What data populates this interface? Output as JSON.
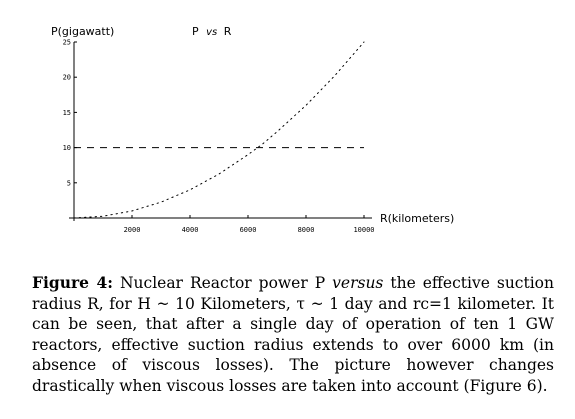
{
  "chart_data": {
    "type": "line",
    "title": "P vs R",
    "title_parts": {
      "lead": "P",
      "mid": "vs",
      "tail": "R"
    },
    "ylabel": "P(gigawatt)",
    "xlabel": "R(kilometers)",
    "xlim": [
      0,
      10000
    ],
    "ylim": [
      0,
      25
    ],
    "x_ticks": [
      "2000",
      "4000",
      "6000",
      "8000",
      "10000"
    ],
    "x_tick_values": [
      2000,
      4000,
      6000,
      8000,
      10000
    ],
    "y_ticks": [
      "5",
      "10",
      "15",
      "20",
      "25"
    ],
    "y_tick_values": [
      5,
      10,
      15,
      20,
      25
    ],
    "grid": false,
    "series": [
      {
        "style": "dotted",
        "x": [
          0,
          1000,
          2000,
          3000,
          4000,
          5000,
          6000,
          6500,
          7000,
          8000,
          9000,
          10000
        ],
        "y": [
          0,
          0.25,
          1.0,
          2.25,
          4.0,
          6.25,
          9.0,
          10.5,
          12.25,
          16.0,
          20.25,
          25.0
        ]
      },
      {
        "style": "dashed",
        "x": [
          0,
          10000
        ],
        "y": [
          10,
          10
        ]
      }
    ]
  },
  "caption": {
    "label": "Figure 4:",
    "part1": " Nuclear Reactor power P ",
    "italic": "versus",
    "part2": " the effective suction radius R, for H ~ 10 Kilometers, τ ~ 1 day and rc=1 kilometer. It can be seen, that after a single day of operation of ten 1 GW reactors, effective suction radius extends to over 6000 km (in absence of viscous losses). The picture however changes drastically when viscous losses are taken into account (Figure 6)."
  }
}
